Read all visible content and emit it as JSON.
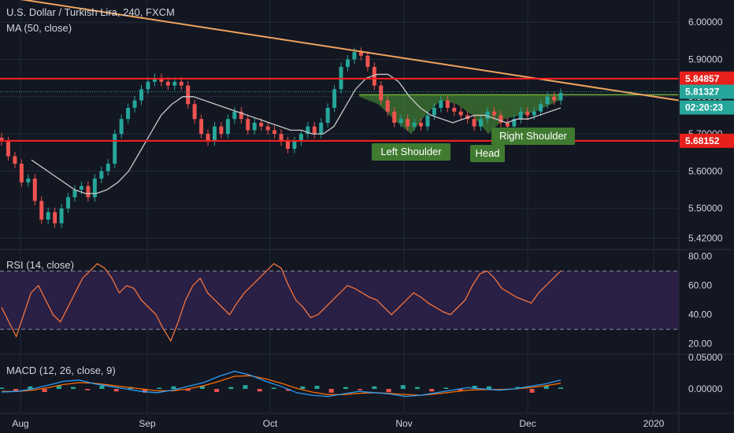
{
  "header": {
    "symbol_title": "U.S. Dollar / Turkish Lira, 240, FXCM",
    "ma_label": "MA (50, close)",
    "rsi_label": "RSI (14, close)",
    "macd_label": "MACD (12, 26, close, 9)"
  },
  "colors": {
    "background": "#131722",
    "grid": "#232a3a",
    "axis_text": "#d1d4dc",
    "candle_up": "#26a69a",
    "candle_down": "#ef5350",
    "ma": "#c8c8c8",
    "trendline": "#f0a45e",
    "resistance": "#ff1f1f",
    "pattern_fill": "#3f7a30",
    "rsi_line": "#f2743c",
    "rsi_band": "#2a1f45",
    "macd_line": "#2a9df4",
    "signal_line": "#ff6d00",
    "price_tag_red": "#e8201c",
    "price_tag_teal": "#26a69a"
  },
  "chart_data": [
    {
      "type": "candlestick",
      "panel": "price",
      "ylim": [
        5.4,
        6.03
      ],
      "y_ticks": [
        "6.00000",
        "5.90000",
        "5.80000",
        "5.70000",
        "5.60000",
        "5.50000",
        "5.42000"
      ],
      "x_ticks": [
        "Aug",
        "Sep",
        "Oct",
        "Nov",
        "Dec",
        "2020"
      ],
      "series_close": [
        5.68,
        5.64,
        5.62,
        5.57,
        5.58,
        5.52,
        5.47,
        5.49,
        5.46,
        5.5,
        5.53,
        5.55,
        5.56,
        5.53,
        5.58,
        5.6,
        5.62,
        5.7,
        5.74,
        5.77,
        5.79,
        5.82,
        5.84,
        5.85,
        5.84,
        5.83,
        5.84,
        5.83,
        5.78,
        5.74,
        5.7,
        5.68,
        5.72,
        5.7,
        5.74,
        5.76,
        5.74,
        5.71,
        5.73,
        5.72,
        5.71,
        5.7,
        5.68,
        5.66,
        5.68,
        5.7,
        5.72,
        5.7,
        5.73,
        5.77,
        5.82,
        5.88,
        5.9,
        5.92,
        5.91,
        5.88,
        5.83,
        5.79,
        5.76,
        5.73,
        5.74,
        5.72,
        5.73,
        5.72,
        5.75,
        5.77,
        5.79,
        5.77,
        5.76,
        5.75,
        5.74,
        5.72,
        5.74,
        5.76,
        5.75,
        5.73,
        5.72,
        5.74,
        5.76,
        5.75,
        5.76,
        5.78,
        5.8,
        5.79,
        5.81
      ],
      "ma_values": [
        5.63,
        5.61,
        5.59,
        5.57,
        5.55,
        5.54,
        5.54,
        5.55,
        5.57,
        5.6,
        5.65,
        5.7,
        5.75,
        5.78,
        5.8,
        5.8,
        5.79,
        5.78,
        5.77,
        5.76,
        5.75,
        5.74,
        5.73,
        5.72,
        5.71,
        5.71,
        5.7,
        5.7,
        5.72,
        5.77,
        5.82,
        5.85,
        5.86,
        5.86,
        5.84,
        5.8,
        5.77,
        5.75,
        5.74,
        5.73,
        5.74,
        5.75,
        5.75,
        5.74,
        5.73,
        5.74,
        5.74,
        5.75,
        5.76,
        5.77
      ],
      "levels": [
        {
          "label": "5.84857",
          "value": 5.84857,
          "style": "red"
        },
        {
          "label": "5.81327",
          "value": 5.81327,
          "style": "teal"
        },
        {
          "label": "5.68152",
          "value": 5.68152,
          "style": "red"
        }
      ],
      "countdown": "02:20:23",
      "pattern_labels": [
        "Left Shoulder",
        "Head",
        "Right Shoulder"
      ]
    },
    {
      "type": "line",
      "panel": "rsi",
      "ylim": [
        15,
        82
      ],
      "y_ticks": [
        "80.00",
        "60.00",
        "40.00",
        "20.00"
      ],
      "band": [
        30,
        70
      ],
      "values": [
        45,
        35,
        25,
        40,
        55,
        60,
        50,
        40,
        35,
        45,
        55,
        65,
        70,
        75,
        72,
        65,
        55,
        60,
        58,
        50,
        45,
        40,
        30,
        22,
        35,
        50,
        60,
        65,
        55,
        50,
        45,
        40,
        48,
        55,
        60,
        65,
        70,
        75,
        72,
        60,
        50,
        45,
        38,
        40,
        45,
        50,
        55,
        60,
        58,
        55,
        52,
        50,
        45,
        40,
        45,
        50,
        55,
        52,
        48,
        45,
        42,
        40,
        45,
        50,
        60,
        68,
        70,
        65,
        58,
        55,
        52,
        50,
        48,
        55,
        60,
        65,
        70
      ]
    },
    {
      "type": "bar+line",
      "panel": "macd",
      "ylim": [
        -0.035,
        0.05
      ],
      "y_ticks": [
        "0.05000",
        "0.00000"
      ],
      "histogram": [
        0.002,
        -0.003,
        0.004,
        -0.005,
        0.006,
        0.003,
        -0.002,
        0.005,
        -0.004,
        0.003,
        -0.006,
        0.002,
        0.004,
        -0.003,
        0.005,
        -0.005,
        0.003,
        0.006,
        -0.004,
        0.002,
        -0.003,
        0.004,
        0.005,
        -0.006,
        0.003,
        -0.002,
        0.004,
        -0.005,
        0.006,
        0.003,
        -0.004,
        0.002,
        -0.003,
        0.005,
        0.004,
        -0.002,
        0.003,
        -0.006,
        0.005,
        0.002
      ],
      "macd": [
        -0.005,
        -0.004,
        0.0,
        0.006,
        0.012,
        0.014,
        0.008,
        0.004,
        0.0,
        -0.004,
        -0.006,
        -0.002,
        0.004,
        0.01,
        0.02,
        0.028,
        0.022,
        0.012,
        0.004,
        -0.006,
        -0.01,
        -0.012,
        -0.008,
        -0.004,
        -0.006,
        -0.008,
        -0.012,
        -0.01,
        -0.006,
        -0.002,
        0.002,
        0.0,
        -0.002,
        0.0,
        0.004,
        0.008,
        0.014
      ],
      "signal": [
        -0.004,
        -0.004,
        -0.002,
        0.002,
        0.007,
        0.01,
        0.009,
        0.006,
        0.003,
        0.0,
        -0.003,
        -0.003,
        0.0,
        0.005,
        0.012,
        0.02,
        0.021,
        0.016,
        0.009,
        0.001,
        -0.005,
        -0.009,
        -0.009,
        -0.007,
        -0.006,
        -0.007,
        -0.009,
        -0.01,
        -0.008,
        -0.005,
        -0.002,
        -0.001,
        -0.001,
        0.0,
        0.002,
        0.005,
        0.009
      ]
    }
  ]
}
